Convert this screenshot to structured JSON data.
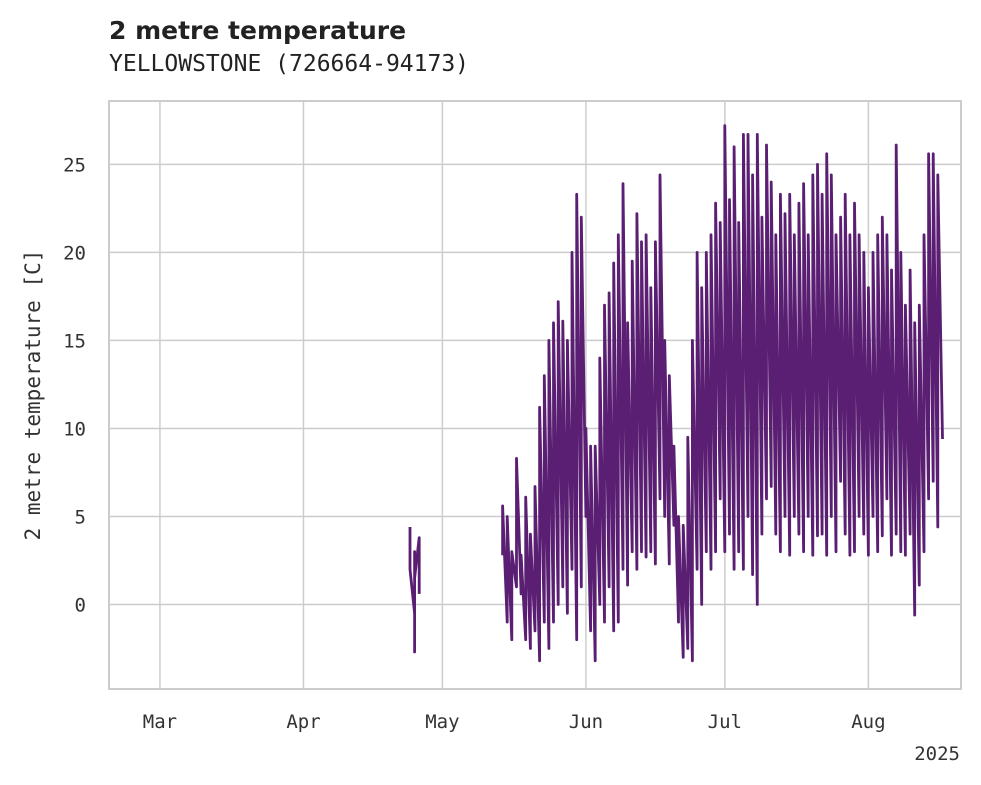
{
  "chart_data": {
    "type": "line",
    "title": "2 metre temperature",
    "subtitle": "YELLOWSTONE (726664-94173)",
    "ylabel": "2 metre temperature [C]",
    "xlabel": "",
    "year_label": "2025",
    "xlim": [
      "2025-02-18",
      "2025-08-21"
    ],
    "ylim": [
      -4.8,
      28.6
    ],
    "x_ticks": [
      {
        "date": "2025-03-01",
        "label": "Mar"
      },
      {
        "date": "2025-04-01",
        "label": "Apr"
      },
      {
        "date": "2025-05-01",
        "label": "May"
      },
      {
        "date": "2025-06-01",
        "label": "Jun"
      },
      {
        "date": "2025-07-01",
        "label": "Jul"
      },
      {
        "date": "2025-08-01",
        "label": "Aug"
      }
    ],
    "y_ticks": [
      0,
      5,
      10,
      15,
      20,
      25
    ],
    "grid": true,
    "legend": "none",
    "series": [
      {
        "color": "#5a1f72",
        "segments": [
          [
            [
              "2025-04-24",
              4.4
            ],
            [
              "2025-04-24",
              2.0
            ],
            [
              "2025-04-25",
              -0.5
            ],
            [
              "2025-04-25",
              3.0
            ],
            [
              "2025-04-25",
              -2.7
            ],
            [
              "2025-04-25",
              1.5
            ],
            [
              "2025-04-26",
              3.8
            ],
            [
              "2025-04-26",
              0.6
            ]
          ],
          [
            [
              "2025-05-14",
              2.8
            ],
            [
              "2025-05-14",
              5.6
            ],
            [
              "2025-05-15",
              -1.0
            ],
            [
              "2025-05-15",
              5.0
            ],
            [
              "2025-05-16",
              -2.0
            ],
            [
              "2025-05-16",
              3.0
            ],
            [
              "2025-05-17",
              1.0
            ],
            [
              "2025-05-17",
              8.3
            ],
            [
              "2025-05-18",
              0.6
            ],
            [
              "2025-05-18",
              2.8
            ],
            [
              "2025-05-19",
              -2.0
            ],
            [
              "2025-05-19",
              6.1
            ],
            [
              "2025-05-20",
              -2.5
            ],
            [
              "2025-05-20",
              4.0
            ],
            [
              "2025-05-21",
              -1.5
            ],
            [
              "2025-05-21",
              6.7
            ],
            [
              "2025-05-22",
              -3.2
            ],
            [
              "2025-05-22",
              11.2
            ],
            [
              "2025-05-23",
              -1.0
            ],
            [
              "2025-05-23",
              13.0
            ],
            [
              "2025-05-24",
              -2.5
            ],
            [
              "2025-05-24",
              15.0
            ],
            [
              "2025-05-25",
              -1.0
            ],
            [
              "2025-05-25",
              16.0
            ],
            [
              "2025-05-26",
              0.0
            ],
            [
              "2025-05-26",
              17.2
            ],
            [
              "2025-05-27",
              1.0
            ],
            [
              "2025-05-27",
              16.1
            ],
            [
              "2025-05-28",
              -0.5
            ],
            [
              "2025-05-28",
              15.0
            ],
            [
              "2025-05-29",
              2.0
            ],
            [
              "2025-05-29",
              20.0
            ],
            [
              "2025-05-30",
              -2.0
            ],
            [
              "2025-05-30",
              23.3
            ],
            [
              "2025-05-31",
              1.0
            ],
            [
              "2025-05-31",
              22.0
            ],
            [
              "2025-06-01",
              5.0
            ],
            [
              "2025-06-01",
              10.0
            ],
            [
              "2025-06-02",
              -1.5
            ],
            [
              "2025-06-02",
              9.0
            ],
            [
              "2025-06-03",
              -3.2
            ],
            [
              "2025-06-03",
              9.0
            ],
            [
              "2025-06-04",
              0.0
            ],
            [
              "2025-06-04",
              14.0
            ],
            [
              "2025-06-05",
              -1.0
            ],
            [
              "2025-06-05",
              17.0
            ],
            [
              "2025-06-06",
              1.0
            ],
            [
              "2025-06-06",
              17.7
            ],
            [
              "2025-06-07",
              -1.5
            ],
            [
              "2025-06-07",
              19.4
            ],
            [
              "2025-06-08",
              -1.0
            ],
            [
              "2025-06-08",
              21.0
            ],
            [
              "2025-06-09",
              2.0
            ],
            [
              "2025-06-09",
              23.9
            ],
            [
              "2025-06-10",
              1.1
            ],
            [
              "2025-06-10",
              16.0
            ],
            [
              "2025-06-11",
              3.0
            ],
            [
              "2025-06-11",
              19.5
            ],
            [
              "2025-06-12",
              2.0
            ],
            [
              "2025-06-12",
              22.2
            ],
            [
              "2025-06-13",
              3.0
            ],
            [
              "2025-06-13",
              20.6
            ],
            [
              "2025-06-14",
              2.7
            ],
            [
              "2025-06-14",
              21.0
            ],
            [
              "2025-06-15",
              3.0
            ],
            [
              "2025-06-15",
              18.0
            ],
            [
              "2025-06-16",
              2.3
            ],
            [
              "2025-06-16",
              20.6
            ],
            [
              "2025-06-17",
              6.0
            ],
            [
              "2025-06-17",
              24.4
            ],
            [
              "2025-06-18",
              5.0
            ],
            [
              "2025-06-18",
              15.0
            ],
            [
              "2025-06-19",
              2.3
            ],
            [
              "2025-06-19",
              13.0
            ],
            [
              "2025-06-20",
              4.5
            ],
            [
              "2025-06-20",
              9.0
            ],
            [
              "2025-06-21",
              -1.0
            ],
            [
              "2025-06-21",
              5.0
            ],
            [
              "2025-06-22",
              -3.0
            ],
            [
              "2025-06-22",
              4.5
            ],
            [
              "2025-06-23",
              -2.5
            ],
            [
              "2025-06-23",
              9.5
            ],
            [
              "2025-06-24",
              -3.2
            ],
            [
              "2025-06-24",
              15.0
            ],
            [
              "2025-06-25",
              2.0
            ],
            [
              "2025-06-25",
              20.0
            ],
            [
              "2025-06-26",
              0.0
            ],
            [
              "2025-06-26",
              18.0
            ],
            [
              "2025-06-27",
              3.0
            ],
            [
              "2025-06-27",
              20.0
            ],
            [
              "2025-06-28",
              2.0
            ],
            [
              "2025-06-28",
              21.0
            ],
            [
              "2025-06-29",
              3.0
            ],
            [
              "2025-06-29",
              22.8
            ],
            [
              "2025-06-30",
              6.0
            ],
            [
              "2025-06-30",
              21.7
            ],
            [
              "2025-07-01",
              3.0
            ],
            [
              "2025-07-01",
              27.2
            ],
            [
              "2025-07-02",
              4.0
            ],
            [
              "2025-07-02",
              23.0
            ],
            [
              "2025-07-03",
              2.0
            ],
            [
              "2025-07-03",
              26.0
            ],
            [
              "2025-07-04",
              3.0
            ],
            [
              "2025-07-04",
              21.7
            ],
            [
              "2025-07-05",
              2.0
            ],
            [
              "2025-07-05",
              26.7
            ],
            [
              "2025-07-06",
              5.0
            ],
            [
              "2025-07-06",
              26.7
            ],
            [
              "2025-07-07",
              1.7
            ],
            [
              "2025-07-07",
              24.4
            ],
            [
              "2025-07-08",
              0.0
            ],
            [
              "2025-07-08",
              26.7
            ],
            [
              "2025-07-09",
              4.0
            ],
            [
              "2025-07-09",
              22.0
            ],
            [
              "2025-07-10",
              6.0
            ],
            [
              "2025-07-10",
              26.1
            ],
            [
              "2025-07-11",
              6.7
            ],
            [
              "2025-07-11",
              24.0
            ],
            [
              "2025-07-12",
              4.0
            ],
            [
              "2025-07-12",
              21.0
            ],
            [
              "2025-07-13",
              3.0
            ],
            [
              "2025-07-13",
              23.3
            ],
            [
              "2025-07-14",
              5.0
            ],
            [
              "2025-07-14",
              22.2
            ],
            [
              "2025-07-15",
              2.8
            ],
            [
              "2025-07-15",
              23.3
            ],
            [
              "2025-07-16",
              5.0
            ],
            [
              "2025-07-16",
              21.0
            ],
            [
              "2025-07-17",
              4.0
            ],
            [
              "2025-07-17",
              22.8
            ],
            [
              "2025-07-18",
              3.0
            ],
            [
              "2025-07-18",
              23.9
            ],
            [
              "2025-07-19",
              5.0
            ],
            [
              "2025-07-19",
              21.0
            ],
            [
              "2025-07-20",
              2.8
            ],
            [
              "2025-07-20",
              24.4
            ],
            [
              "2025-07-21",
              3.9
            ],
            [
              "2025-07-21",
              25.0
            ],
            [
              "2025-07-22",
              4.0
            ],
            [
              "2025-07-22",
              23.3
            ],
            [
              "2025-07-23",
              2.8
            ],
            [
              "2025-07-23",
              25.6
            ],
            [
              "2025-07-24",
              5.0
            ],
            [
              "2025-07-24",
              24.4
            ],
            [
              "2025-07-25",
              3.0
            ],
            [
              "2025-07-25",
              21.0
            ],
            [
              "2025-07-26",
              7.0
            ],
            [
              "2025-07-26",
              22.0
            ],
            [
              "2025-07-27",
              4.0
            ],
            [
              "2025-07-27",
              23.3
            ],
            [
              "2025-07-28",
              2.8
            ],
            [
              "2025-07-28",
              21.0
            ],
            [
              "2025-07-29",
              3.0
            ],
            [
              "2025-07-29",
              22.8
            ],
            [
              "2025-07-30",
              5.0
            ],
            [
              "2025-07-30",
              21.0
            ],
            [
              "2025-07-31",
              4.0
            ],
            [
              "2025-07-31",
              20.0
            ],
            [
              "2025-08-01",
              2.8
            ],
            [
              "2025-08-01",
              18.0
            ],
            [
              "2025-08-02",
              5.0
            ],
            [
              "2025-08-02",
              20.0
            ],
            [
              "2025-08-03",
              3.0
            ],
            [
              "2025-08-03",
              21.0
            ],
            [
              "2025-08-04",
              3.9
            ],
            [
              "2025-08-04",
              22.0
            ],
            [
              "2025-08-05",
              6.0
            ],
            [
              "2025-08-05",
              21.0
            ],
            [
              "2025-08-06",
              2.8
            ],
            [
              "2025-08-06",
              19.0
            ],
            [
              "2025-08-07",
              4.0
            ],
            [
              "2025-08-07",
              26.1
            ],
            [
              "2025-08-08",
              3.0
            ],
            [
              "2025-08-08",
              20.0
            ],
            [
              "2025-08-09",
              2.8
            ],
            [
              "2025-08-09",
              17.0
            ],
            [
              "2025-08-10",
              4.0
            ],
            [
              "2025-08-10",
              19.0
            ],
            [
              "2025-08-11",
              -0.6
            ],
            [
              "2025-08-11",
              16.0
            ],
            [
              "2025-08-12",
              1.1
            ],
            [
              "2025-08-12",
              17.0
            ],
            [
              "2025-08-13",
              3.0
            ],
            [
              "2025-08-13",
              21.0
            ],
            [
              "2025-08-14",
              6.0
            ],
            [
              "2025-08-14",
              25.6
            ],
            [
              "2025-08-15",
              7.0
            ],
            [
              "2025-08-15",
              25.6
            ],
            [
              "2025-08-16",
              4.4
            ],
            [
              "2025-08-16",
              24.4
            ],
            [
              "2025-08-17",
              9.4
            ]
          ]
        ]
      }
    ]
  }
}
